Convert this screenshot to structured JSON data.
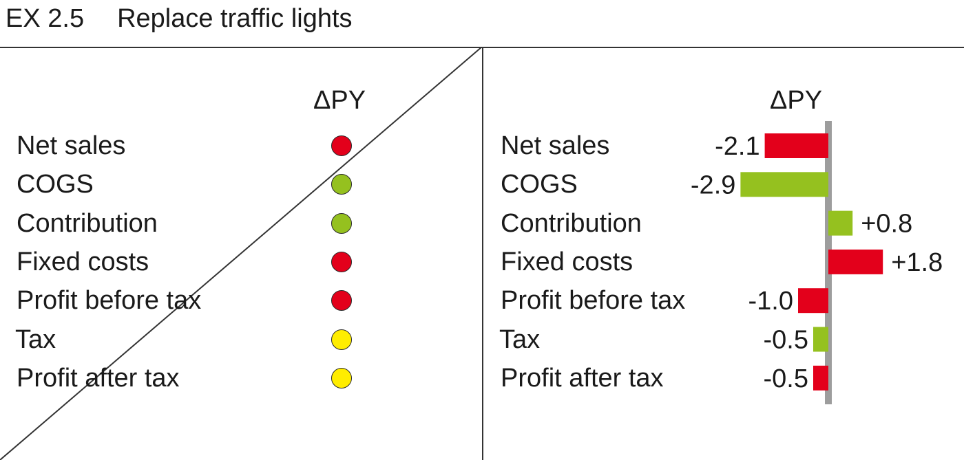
{
  "title": {
    "code": "EX 2.5",
    "text": "Replace traffic lights"
  },
  "colors": {
    "red": "#e3001b",
    "green": "#95c11f",
    "yellow": "#ffed00",
    "axis": "#9d9d9d"
  },
  "left_panel": {
    "column_header": "ΔPY",
    "rows": [
      {
        "label": "Net sales",
        "status": "red"
      },
      {
        "label": "COGS",
        "status": "green"
      },
      {
        "label": "Contribution",
        "status": "green"
      },
      {
        "label": "Fixed costs",
        "status": "red"
      },
      {
        "label": "Profit before tax",
        "status": "red"
      },
      {
        "label": "Tax",
        "status": "yellow"
      },
      {
        "label": "Profit after tax",
        "status": "yellow"
      }
    ]
  },
  "chart_data": {
    "type": "bar",
    "orientation": "horizontal",
    "title": "ΔPY",
    "categories": [
      "Net sales",
      "COGS",
      "Contribution",
      "Fixed costs",
      "Profit before tax",
      "Tax",
      "Profit after tax"
    ],
    "values": [
      -2.1,
      -2.9,
      0.8,
      1.8,
      -1.0,
      -0.5,
      -0.5
    ],
    "value_labels": [
      "-2.1",
      "-2.9",
      "+0.8",
      "+1.8",
      "-1.0",
      "-0.5",
      "-0.5"
    ],
    "bar_colors": [
      "red",
      "green",
      "green",
      "red",
      "red",
      "green",
      "red"
    ],
    "grid": false
  }
}
